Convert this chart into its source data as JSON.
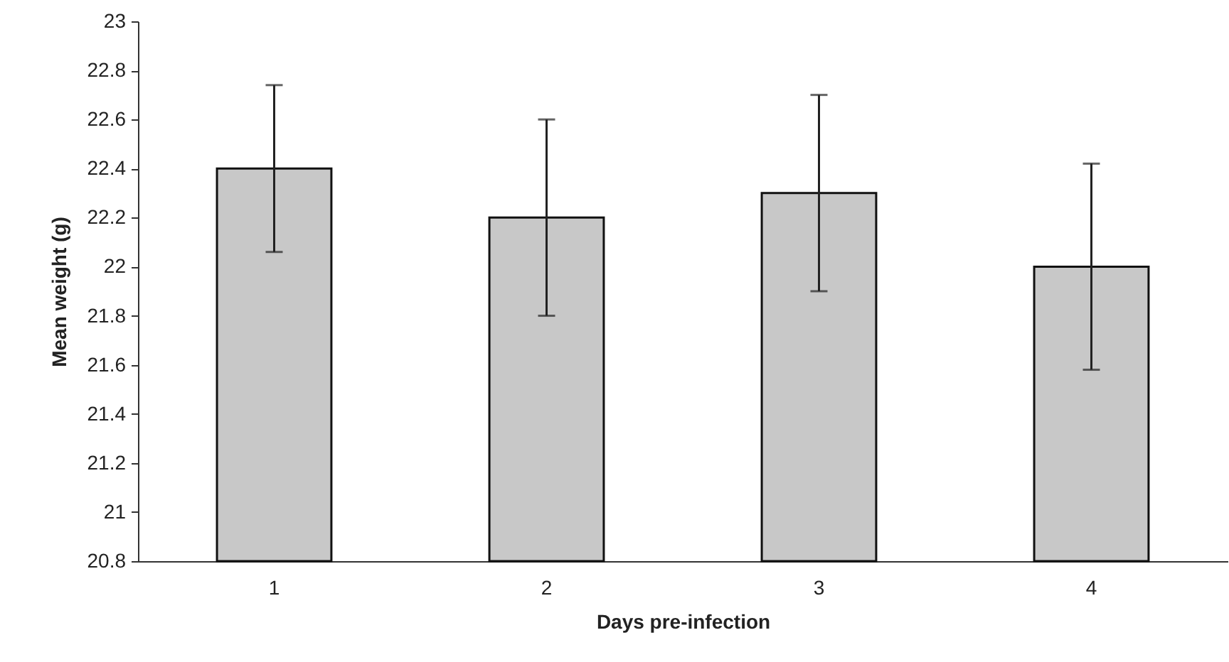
{
  "chart_data": {
    "type": "bar",
    "xlabel": "Days pre-infection",
    "ylabel": "Mean weight (g)",
    "categories": [
      "1",
      "2",
      "3",
      "4"
    ],
    "values": [
      22.4,
      22.2,
      22.3,
      22.0
    ],
    "errors": [
      0.34,
      0.4,
      0.4,
      0.42
    ],
    "color": "#c8c8c8",
    "ylim": [
      20.8,
      23
    ],
    "yticks": [
      20.8,
      21,
      21.2,
      21.4,
      21.6,
      21.8,
      22,
      22.2,
      22.4,
      22.6,
      22.8,
      23
    ],
    "grid": false
  }
}
